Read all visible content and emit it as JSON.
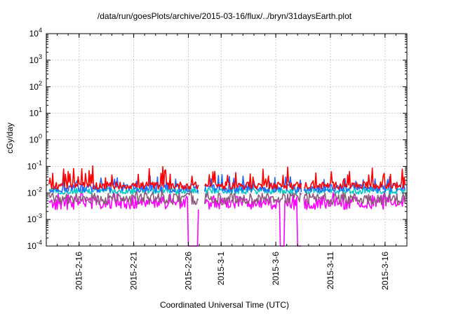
{
  "chart_data": {
    "type": "line",
    "title": "/data/run/goesPlots/archive/2015-03-16/flux/../bryn/31daysEarth.plot",
    "xlabel": "Coordinated Universal Time (UTC)",
    "ylabel": "cGy/day",
    "yscale": "log",
    "ylim": [
      0.0001,
      10000
    ],
    "xlim": [
      "2015-02-13",
      "2015-03-18"
    ],
    "grid": true,
    "x_ticks": [
      "2015-2-16",
      "2015-2-21",
      "2015-2-26",
      "2015-3-1",
      "2015-3-6",
      "2015-3-11",
      "2015-3-16"
    ],
    "y_ticks": [
      {
        "value": 0.0001,
        "base": "10",
        "exp": "-4"
      },
      {
        "value": 0.001,
        "base": "10",
        "exp": "-3"
      },
      {
        "value": 0.01,
        "base": "10",
        "exp": "-2"
      },
      {
        "value": 0.1,
        "base": "10",
        "exp": "-1"
      },
      {
        "value": 1,
        "base": "10",
        "exp": "0"
      },
      {
        "value": 10,
        "base": "10",
        "exp": "1"
      },
      {
        "value": 100,
        "base": "10",
        "exp": "2"
      },
      {
        "value": 1000,
        "base": "10",
        "exp": "3"
      },
      {
        "value": 10000,
        "base": "10",
        "exp": "4"
      }
    ],
    "gaps": [
      {
        "start": "2015-02-27T00:00",
        "end": "2015-02-27T12:00"
      },
      {
        "start": "2015-03-08T10:00",
        "end": "2015-03-08T14:00"
      }
    ],
    "dropouts": [
      {
        "series": 4,
        "start": "2015-02-26T00:00",
        "end": "2015-02-26T22:00"
      },
      {
        "series": 4,
        "start": "2015-03-06T10:00",
        "end": "2015-03-06T20:00"
      },
      {
        "series": 4,
        "start": "2015-03-08T00:00",
        "end": "2015-03-08T10:00"
      }
    ],
    "series": [
      {
        "color": "#ff0000",
        "base": 0.019,
        "spread": 0.14,
        "spike_prob": 0.16,
        "spike_max": 4.0
      },
      {
        "color": "#00c8c8",
        "base": 0.012,
        "spread": 0.12,
        "spike_prob": 0.08,
        "spike_max": 1.6
      },
      {
        "color": "#2266ff",
        "base": 0.015,
        "spread": 0.15,
        "spike_prob": 0.14,
        "spike_max": 3.0
      },
      {
        "color": "#8c5a7a",
        "base": 0.006,
        "spread": 0.22,
        "spike_prob": 0.1,
        "spike_max": 1.6
      },
      {
        "color": "#ff00ff",
        "base": 0.0042,
        "spread": 0.25,
        "spike_prob": 0.12,
        "spike_max": 2.0
      }
    ]
  }
}
